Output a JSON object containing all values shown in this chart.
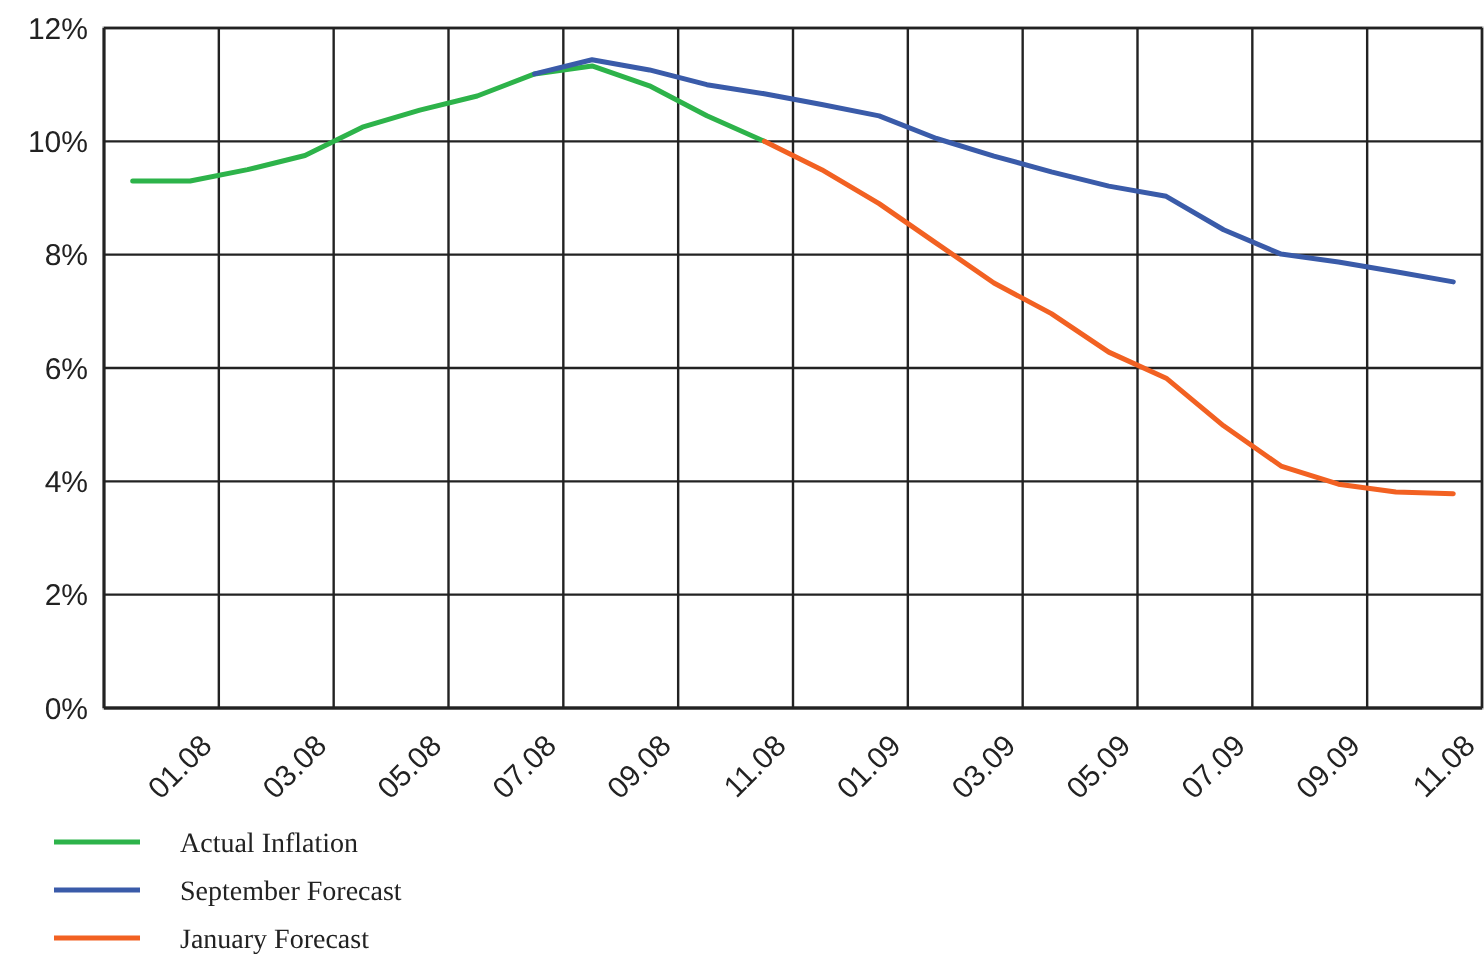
{
  "chart_data": {
    "type": "line",
    "categories": [
      null,
      "01.08",
      null,
      "03.08",
      null,
      "05.08",
      null,
      "07.08",
      null,
      "09.08",
      null,
      "11.08",
      null,
      "01.09",
      null,
      "03.09",
      null,
      "05.09",
      null,
      "07.09",
      null,
      "09.09",
      null,
      "11.08"
    ],
    "series": [
      {
        "name": "Actual Inflation",
        "color": "#2db34a",
        "values": [
          9.3,
          9.3,
          9.5,
          9.75,
          10.25,
          10.55,
          10.8,
          11.19,
          11.33,
          10.98,
          10.45,
          10.0,
          null,
          null,
          null,
          null,
          null,
          null,
          null,
          null,
          null,
          null,
          null,
          null
        ]
      },
      {
        "name": "September Forecast",
        "color": "#3a5ba9",
        "values": [
          null,
          null,
          null,
          null,
          null,
          null,
          null,
          11.19,
          11.44,
          11.26,
          11.0,
          10.84,
          10.65,
          10.45,
          10.05,
          9.74,
          9.46,
          9.21,
          9.03,
          8.44,
          8.01,
          7.87,
          7.7,
          7.52
        ]
      },
      {
        "name": "January Forecast",
        "color": "#f26122",
        "values": [
          null,
          null,
          null,
          null,
          null,
          null,
          null,
          null,
          null,
          null,
          null,
          10.0,
          9.5,
          8.9,
          8.2,
          7.5,
          6.96,
          6.28,
          5.82,
          4.98,
          4.27,
          3.95,
          3.81,
          3.78
        ]
      }
    ],
    "ylim": [
      0,
      12
    ],
    "yticks": [
      {
        "value": 0,
        "label": "0%"
      },
      {
        "value": 2,
        "label": "2%"
      },
      {
        "value": 4,
        "label": "4%"
      },
      {
        "value": 6,
        "label": "6%"
      },
      {
        "value": 8,
        "label": "8%"
      },
      {
        "value": 10,
        "label": "10%"
      },
      {
        "value": 12,
        "label": "12%"
      }
    ],
    "grid": true,
    "legend": "bottom left",
    "marker": "none",
    "line_style": "solid"
  }
}
